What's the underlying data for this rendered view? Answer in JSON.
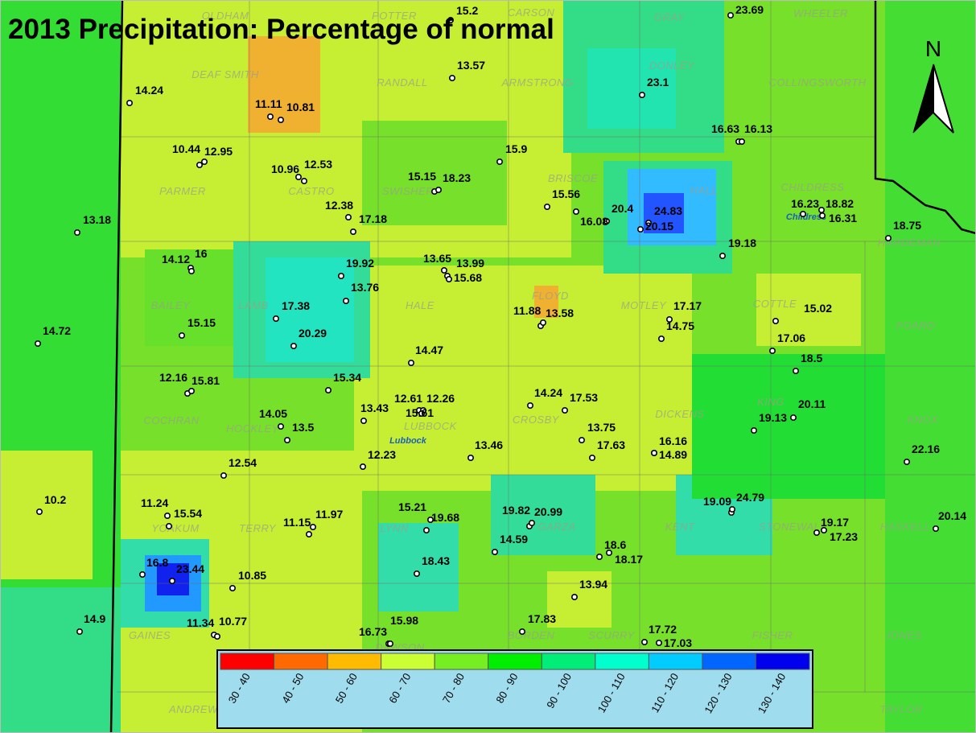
{
  "title": "2013 Precipitation: Percentage of normal",
  "north": "N",
  "cities": [
    "Lubbock",
    "Childress"
  ],
  "counties": [
    "OLDHAM",
    "POTTER",
    "CARSON",
    "GRAY",
    "WHEELER",
    "DEAF SMITH",
    "RANDALL",
    "ARMSTRONG",
    "DONLEY",
    "COLLINGSWORTH",
    "PARMER",
    "CASTRO",
    "SWISHER",
    "BRISCOE",
    "HALL",
    "CHILDRESS",
    "HARDEMAN",
    "BAILEY",
    "LAMB",
    "HALE",
    "FLOYD",
    "MOTLEY",
    "COTTLE",
    "FOARD",
    "COCHRAN",
    "HOCKLEY",
    "LUBBOCK",
    "CROSBY",
    "DICKENS",
    "KING",
    "KNOX",
    "YOAKUM",
    "TERRY",
    "LYNN",
    "GARZA",
    "KENT",
    "STONEWALL",
    "HASKELL",
    "GAINES",
    "DAWSON",
    "BORDEN",
    "SCURRY",
    "FISHER",
    "JONES",
    "ANDREWS",
    "TAYLOR"
  ],
  "stations": [
    "15.2",
    "23.69",
    "13.57",
    "14.24",
    "23.1",
    "11.11",
    "10.81",
    "16.63",
    "16.13",
    "15.9",
    "10.44",
    "12.95",
    "10.96",
    "12.53",
    "15.15",
    "18.23",
    "12.38",
    "17.18",
    "15.56",
    "20.4",
    "16.08",
    "24.83",
    "20.15",
    "16.23",
    "18.82",
    "16.31",
    "18.75",
    "13.18",
    "19.18",
    "14.12",
    "16",
    "19.92",
    "13.65",
    "13.99",
    "15.68",
    "13.76",
    "17.38",
    "11.88",
    "13.58",
    "17.17",
    "14.75",
    "15.02",
    "14.72",
    "15.15",
    "20.29",
    "14.47",
    "17.06",
    "18.5",
    "12.16",
    "15.81",
    "15.34",
    "14.24",
    "17.53",
    "12.61",
    "12.26",
    "15.61",
    "13.43",
    "14.05",
    "13.5",
    "19.13",
    "20.11",
    "22.16",
    "13.75",
    "17.63",
    "16.16",
    "14.89",
    "13.46",
    "12.23",
    "12.54",
    "10.2",
    "11.24",
    "15.54",
    "15.21",
    "19.68",
    "19.82",
    "20.99",
    "19.09",
    "24.79",
    "20.14",
    "19.17",
    "17.23",
    "11.15",
    "11.97",
    "14.59",
    "18.6",
    "18.17",
    "16.8",
    "23.44",
    "10.85",
    "18.43",
    "13.94",
    "14.9",
    "11.34",
    "10.77",
    "16.73",
    "15.98",
    "17.83",
    "17.72",
    "17.03"
  ],
  "legend": [
    {
      "label": "30 - 40",
      "color": "#ff0000"
    },
    {
      "label": "40 - 50",
      "color": "#ff6a00"
    },
    {
      "label": "50 - 60",
      "color": "#ffbb00"
    },
    {
      "label": "60 - 70",
      "color": "#ccff33"
    },
    {
      "label": "70 - 80",
      "color": "#77ee22"
    },
    {
      "label": "80 - 90",
      "color": "#00ee00"
    },
    {
      "label": "90 - 100",
      "color": "#00ee77"
    },
    {
      "label": "100 - 110",
      "color": "#00ffcc"
    },
    {
      "label": "110 - 120",
      "color": "#00ccff"
    },
    {
      "label": "120 - 130",
      "color": "#0066ff"
    },
    {
      "label": "130 - 140",
      "color": "#0000ee"
    }
  ]
}
